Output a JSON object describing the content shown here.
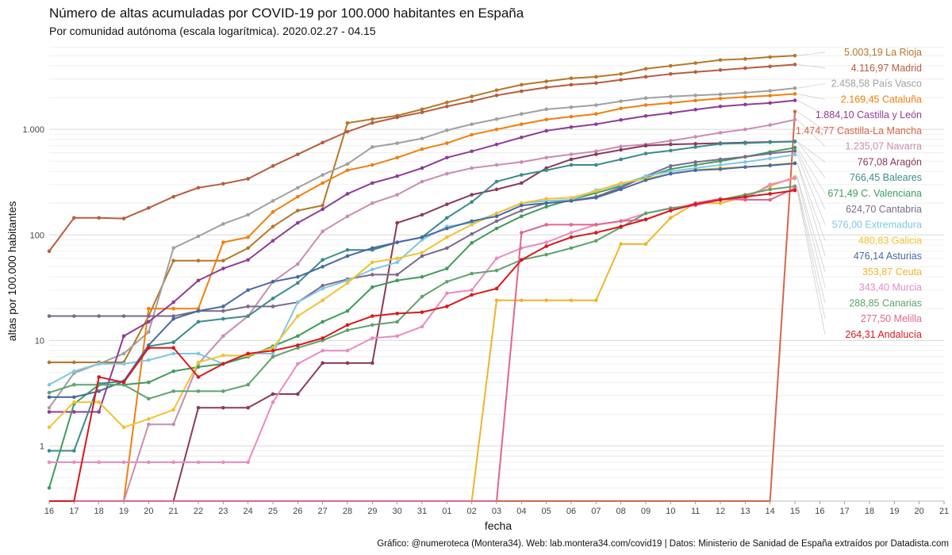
{
  "chart_data": {
    "type": "line",
    "title": "Número de altas acumuladas por COVID-19 por 100.000 habitantes en España",
    "subtitle": "Por comunidad autónoma (escala logarítmica). 2020.02.27 - 04.15",
    "xlabel": "fecha",
    "ylabel": "altas por 100.000 habitantes",
    "caption": "Gráfico: @numeroteca (Montera34). Web: lab.montera34.com/covid19 | Datos: Ministerio de Sanidad de España extraídos por Datadista.com",
    "y_scale": "log",
    "ylim": [
      0.3,
      6500
    ],
    "y_ticks": [
      {
        "value": 1,
        "label": "1"
      },
      {
        "value": 10,
        "label": "10"
      },
      {
        "value": 100,
        "label": "100"
      },
      {
        "value": 1000,
        "label": "1.000"
      }
    ],
    "x_tick_labels": [
      "16",
      "17",
      "18",
      "19",
      "20",
      "21",
      "22",
      "23",
      "24",
      "25",
      "26",
      "27",
      "28",
      "29",
      "30",
      "31",
      "01",
      "02",
      "03",
      "04",
      "05",
      "06",
      "07",
      "08",
      "09",
      "10",
      "11",
      "12",
      "13",
      "14",
      "15",
      "16",
      "17",
      "18",
      "19",
      "20",
      "21"
    ],
    "x_start": "2020-03-16",
    "x": [
      "2020-03-16",
      "2020-03-17",
      "2020-03-18",
      "2020-03-19",
      "2020-03-20",
      "2020-03-21",
      "2020-03-22",
      "2020-03-23",
      "2020-03-24",
      "2020-03-25",
      "2020-03-26",
      "2020-03-27",
      "2020-03-28",
      "2020-03-29",
      "2020-03-30",
      "2020-03-31",
      "2020-04-01",
      "2020-04-02",
      "2020-04-03",
      "2020-04-04",
      "2020-04-05",
      "2020-04-06",
      "2020-04-07",
      "2020-04-08",
      "2020-04-09",
      "2020-04-10",
      "2020-04-11",
      "2020-04-12",
      "2020-04-13",
      "2020-04-14",
      "2020-04-15"
    ],
    "grid": true,
    "series": [
      {
        "name": "La Rioja",
        "label": "5.003,19 La Rioja",
        "color": "#b5772a",
        "values": [
          6.2,
          6.2,
          6.2,
          6.2,
          17,
          57,
          57,
          57,
          75,
          120,
          170,
          190,
          1150,
          1250,
          1350,
          1550,
          1800,
          2050,
          2350,
          2650,
          2850,
          3050,
          3150,
          3350,
          3750,
          4000,
          4250,
          4550,
          4650,
          4850,
          5003.19
        ]
      },
      {
        "name": "Madrid",
        "label": "4.116,97 Madrid",
        "color": "#b85c3f",
        "values": [
          70,
          145,
          145,
          143,
          180,
          230,
          280,
          305,
          340,
          450,
          580,
          750,
          950,
          1150,
          1300,
          1450,
          1650,
          1850,
          2100,
          2300,
          2500,
          2650,
          2750,
          2950,
          3150,
          3350,
          3500,
          3650,
          3800,
          3950,
          4116.97
        ]
      },
      {
        "name": "País Vasco",
        "label": "2.458,58 País Vasco",
        "color": "#a0a0a0",
        "values": [
          2.3,
          4.9,
          6,
          7.5,
          12,
          75,
          97,
          127,
          155,
          210,
          280,
          370,
          470,
          680,
          740,
          820,
          980,
          1120,
          1250,
          1400,
          1550,
          1620,
          1700,
          1850,
          1980,
          2050,
          2100,
          2150,
          2230,
          2320,
          2458.58
        ]
      },
      {
        "name": "Cataluña",
        "label": "2.169,45 Cataluña",
        "color": "#f07f0e",
        "values": [
          0.2,
          0.2,
          0.2,
          0.2,
          20,
          20,
          20,
          85,
          95,
          165,
          230,
          310,
          410,
          460,
          540,
          650,
          740,
          890,
          1000,
          1120,
          1240,
          1320,
          1400,
          1580,
          1700,
          1780,
          1880,
          1960,
          2030,
          2090,
          2169.45
        ]
      },
      {
        "name": "Castilla y León",
        "label": "1.884,10 Castilla y León",
        "color": "#8e3d97",
        "values": [
          2.1,
          2.1,
          2.1,
          11,
          15,
          23,
          37,
          48,
          58,
          88,
          130,
          175,
          245,
          310,
          360,
          430,
          540,
          620,
          720,
          840,
          970,
          1050,
          1120,
          1230,
          1340,
          1430,
          1540,
          1650,
          1720,
          1780,
          1884.1
        ]
      },
      {
        "name": "Castilla-La Mancha",
        "label": "1.474,77 Castilla-La Mancha",
        "color": "#d3674a",
        "values": [
          0.25,
          0.25,
          0.25,
          0.25,
          0.25,
          0.25,
          0.25,
          0.25,
          0.25,
          0.25,
          0.25,
          0.25,
          0.25,
          0.25,
          0.25,
          0.25,
          0.25,
          0.25,
          0.25,
          0.25,
          0.25,
          0.25,
          0.25,
          0.25,
          0.25,
          0.25,
          0.25,
          0.25,
          0.25,
          0.25,
          1474.77
        ]
      },
      {
        "name": "Navarra",
        "label": "1.235,07 Navarra",
        "color": "#c88db0",
        "values": [
          0.2,
          0.2,
          0.2,
          0.2,
          1.6,
          1.6,
          6,
          11,
          17,
          36,
          53,
          108,
          150,
          200,
          240,
          320,
          380,
          430,
          460,
          490,
          540,
          580,
          620,
          690,
          720,
          780,
          850,
          930,
          1000,
          1100,
          1235.07
        ]
      },
      {
        "name": "Aragón",
        "label": "767,08 Aragón",
        "color": "#8a3a5e",
        "values": [
          0.2,
          0.2,
          0.2,
          0.2,
          0.2,
          0.2,
          2.3,
          2.3,
          2.3,
          3.1,
          3.1,
          6.1,
          6.1,
          6.1,
          130,
          155,
          195,
          240,
          270,
          310,
          430,
          520,
          580,
          640,
          700,
          720,
          730,
          740,
          750,
          760,
          767.08
        ]
      },
      {
        "name": "Baleares",
        "label": "766,45 Baleares",
        "color": "#3a8c8c",
        "values": [
          0.9,
          0.9,
          3.9,
          4.1,
          8.8,
          9.6,
          15,
          16,
          17,
          25,
          35,
          58,
          72,
          72,
          85,
          95,
          145,
          205,
          320,
          370,
          410,
          460,
          460,
          520,
          590,
          630,
          680,
          730,
          740,
          755,
          766.45
        ]
      },
      {
        "name": "C. Valenciana",
        "label": "671,49 C. Valenciana",
        "color": "#3f9c5c",
        "values": [
          0.4,
          2.5,
          3.8,
          3.8,
          4,
          5.1,
          5.6,
          6,
          7,
          8.8,
          11,
          15,
          19,
          32,
          37,
          40,
          48,
          84,
          115,
          150,
          185,
          215,
          250,
          290,
          350,
          420,
          460,
          500,
          550,
          610,
          671.49
        ]
      },
      {
        "name": "Cantabria",
        "label": "624,70 Cantabria",
        "color": "#7a6a8c",
        "values": [
          17,
          17,
          17,
          17,
          17,
          17,
          19,
          19,
          21,
          21,
          23,
          33,
          38,
          42,
          42,
          63,
          75,
          102,
          135,
          170,
          200,
          210,
          230,
          280,
          360,
          450,
          490,
          520,
          550,
          590,
          624.7
        ]
      },
      {
        "name": "Extremadura",
        "label": "576,00 Extremadura",
        "color": "#7ec8e3",
        "values": [
          3.8,
          5.1,
          6,
          6,
          6.5,
          7.5,
          7.5,
          6,
          7.5,
          7.5,
          23,
          31,
          37,
          47,
          55,
          90,
          120,
          130,
          160,
          200,
          210,
          215,
          265,
          300,
          360,
          400,
          430,
          460,
          490,
          530,
          576.0
        ]
      },
      {
        "name": "Galicia",
        "label": "480,83 Galicia",
        "color": "#f1c232",
        "values": [
          1.5,
          2.6,
          2.6,
          1.5,
          1.8,
          2.2,
          6.2,
          7.2,
          7.2,
          8.5,
          17,
          24,
          35,
          55,
          60,
          68,
          95,
          125,
          160,
          200,
          220,
          225,
          260,
          310,
          340,
          380,
          410,
          430,
          440,
          460,
          480.83
        ]
      },
      {
        "name": "Asturias",
        "label": "476,14 Asturias",
        "color": "#4a6aa0",
        "values": [
          2.9,
          2.9,
          3.3,
          4.1,
          9,
          16,
          19,
          21,
          30,
          36,
          40,
          50,
          63,
          75,
          85,
          95,
          115,
          135,
          150,
          190,
          200,
          210,
          225,
          270,
          330,
          380,
          410,
          420,
          440,
          455,
          476.14
        ]
      },
      {
        "name": "Ceuta",
        "label": "353,87 Ceuta",
        "color": "#f0b429",
        "values": [
          0.2,
          0.2,
          0.2,
          0.2,
          0.2,
          0.2,
          0.2,
          0.2,
          0.2,
          0.2,
          0.2,
          0.2,
          0.2,
          0.2,
          0.2,
          0.2,
          0.2,
          0.2,
          24,
          24,
          24,
          24,
          24,
          82,
          82,
          145,
          200,
          200,
          230,
          290,
          353.87
        ]
      },
      {
        "name": "Murcia",
        "label": "343,40 Murcia",
        "color": "#e88cc0",
        "values": [
          0.7,
          0.7,
          0.7,
          0.7,
          0.7,
          0.7,
          0.7,
          0.7,
          0.7,
          2.6,
          6,
          8,
          8,
          10.5,
          11,
          13.5,
          28,
          30,
          60,
          75,
          85,
          105,
          125,
          135,
          160,
          180,
          190,
          215,
          220,
          300,
          343.4
        ]
      },
      {
        "name": "Canarias",
        "label": "288,85 Canarias",
        "color": "#5fa36a",
        "values": [
          3.2,
          3.8,
          3.8,
          3.8,
          2.8,
          3.3,
          3.3,
          3.3,
          3.8,
          7,
          8.5,
          10,
          12.5,
          14,
          15,
          26,
          36,
          43,
          46,
          58,
          65,
          75,
          88,
          118,
          160,
          178,
          195,
          215,
          240,
          270,
          288.85
        ]
      },
      {
        "name": "Melilla",
        "label": "277,50 Melilla",
        "color": "#e0658f",
        "values": [
          0.2,
          0.2,
          0.2,
          0.2,
          0.2,
          0.2,
          0.2,
          0.2,
          0.2,
          0.2,
          0.2,
          0.2,
          0.2,
          0.2,
          0.2,
          0.2,
          0.2,
          0.2,
          0.2,
          105,
          125,
          125,
          125,
          135,
          140,
          170,
          200,
          220,
          215,
          215,
          277.5
        ]
      },
      {
        "name": "Andalucía",
        "label": "264,31 Andalucía",
        "color": "#d7191c",
        "values": [
          0.2,
          0.2,
          4.5,
          4,
          8.5,
          8.5,
          4.5,
          6,
          7.5,
          8,
          9,
          10.5,
          14,
          17,
          18,
          18.5,
          21,
          27,
          31,
          58,
          78,
          95,
          105,
          120,
          140,
          170,
          195,
          215,
          230,
          245,
          264.31
        ]
      }
    ]
  }
}
